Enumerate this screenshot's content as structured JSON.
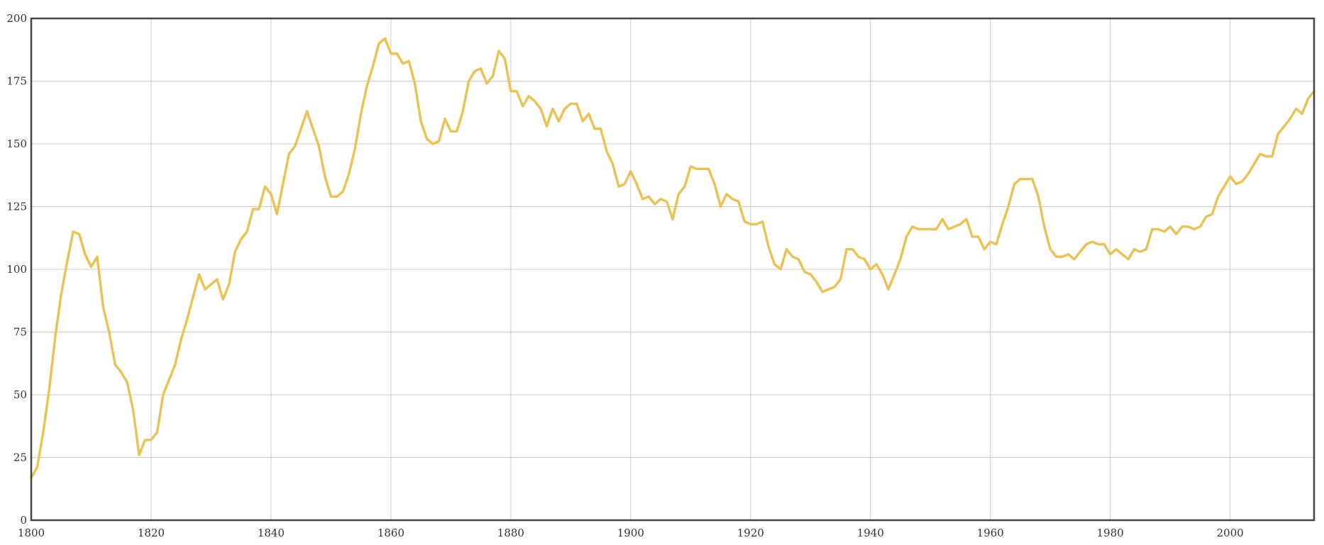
{
  "chart_data": {
    "type": "line",
    "title": "",
    "xlabel": "",
    "ylabel": "",
    "xlim": [
      1800,
      2014
    ],
    "ylim": [
      0,
      200
    ],
    "grid": true,
    "x_ticks": [
      1800,
      1820,
      1840,
      1860,
      1880,
      1900,
      1920,
      1940,
      1960,
      1980,
      2000
    ],
    "y_ticks": [
      0,
      25,
      50,
      75,
      100,
      125,
      150,
      175,
      200
    ],
    "x_tick_labels": [
      "1800",
      "1820",
      "1840",
      "1860",
      "1880",
      "1900",
      "1920",
      "1940",
      "1960",
      "1980",
      "2000"
    ],
    "y_tick_labels": [
      "0",
      "25",
      "50",
      "75",
      "100",
      "125",
      "150",
      "175",
      "200"
    ],
    "colors": {
      "line": "#EBC254",
      "grid": "#CCCCCC",
      "frame": "#444444",
      "axis_text": "#333333"
    },
    "series": [
      {
        "x": [
          1800,
          1801,
          1802,
          1803,
          1804,
          1805,
          1806,
          1807,
          1808,
          1809,
          1810,
          1811,
          1812,
          1813,
          1814,
          1815,
          1816,
          1817,
          1818,
          1819,
          1820,
          1821,
          1822,
          1823,
          1824,
          1825,
          1826,
          1827,
          1828,
          1829,
          1830,
          1831,
          1832,
          1833,
          1834,
          1835,
          1836,
          1837,
          1838,
          1839,
          1840,
          1841,
          1842,
          1843,
          1844,
          1845,
          1846,
          1847,
          1848,
          1849,
          1850,
          1851,
          1852,
          1853,
          1854,
          1855,
          1856,
          1857,
          1858,
          1859,
          1860,
          1861,
          1862,
          1863,
          1864,
          1865,
          1866,
          1867,
          1868,
          1869,
          1870,
          1871,
          1872,
          1873,
          1874,
          1875,
          1876,
          1877,
          1878,
          1879,
          1880,
          1881,
          1882,
          1883,
          1884,
          1885,
          1886,
          1887,
          1888,
          1889,
          1890,
          1891,
          1892,
          1893,
          1894,
          1895,
          1896,
          1897,
          1898,
          1899,
          1900,
          1901,
          1902,
          1903,
          1904,
          1905,
          1906,
          1907,
          1908,
          1909,
          1910,
          1911,
          1912,
          1913,
          1914,
          1915,
          1916,
          1917,
          1918,
          1919,
          1920,
          1921,
          1922,
          1923,
          1924,
          1925,
          1926,
          1927,
          1928,
          1929,
          1930,
          1931,
          1932,
          1933,
          1934,
          1935,
          1936,
          1937,
          1938,
          1939,
          1940,
          1941,
          1942,
          1943,
          1944,
          1945,
          1946,
          1947,
          1948,
          1949,
          1950,
          1951,
          1952,
          1953,
          1954,
          1955,
          1956,
          1957,
          1958,
          1959,
          1960,
          1961,
          1962,
          1963,
          1964,
          1965,
          1966,
          1967,
          1968,
          1969,
          1970,
          1971,
          1972,
          1973,
          1974,
          1975,
          1976,
          1977,
          1978,
          1979,
          1980,
          1981,
          1982,
          1983,
          1984,
          1985,
          1986,
          1987,
          1988,
          1989,
          1990,
          1991,
          1992,
          1993,
          1994,
          1995,
          1996,
          1997,
          1998,
          1999,
          2000,
          2001,
          2002,
          2003,
          2004,
          2005,
          2006,
          2007,
          2008,
          2009,
          2010,
          2011,
          2012,
          2013,
          2014
        ],
        "y": [
          17,
          21,
          35,
          52,
          73,
          90,
          103,
          115,
          114,
          106,
          101,
          105,
          85,
          75,
          62,
          59,
          55,
          44,
          26,
          32,
          32,
          35,
          50,
          56,
          62,
          72,
          80,
          89,
          98,
          92,
          94,
          96,
          88,
          94,
          107,
          112,
          115,
          124,
          124,
          133,
          130,
          122,
          134,
          146,
          149,
          156,
          163,
          156,
          149,
          137,
          129,
          129,
          131,
          138,
          148,
          162,
          173,
          181,
          190,
          192,
          186,
          186,
          182,
          183,
          174,
          159,
          152,
          150,
          151,
          160,
          155,
          155,
          163,
          175,
          179,
          180,
          174,
          177,
          187,
          184,
          171,
          171,
          165,
          169,
          167,
          164,
          157,
          164,
          159,
          164,
          166,
          166,
          159,
          162,
          156,
          156,
          147,
          142,
          133,
          134,
          139,
          134,
          128,
          129,
          126,
          128,
          127,
          120,
          130,
          133,
          141,
          140,
          140,
          140,
          134,
          125,
          130,
          128,
          127,
          119,
          118,
          118,
          119,
          109,
          102,
          100,
          108,
          105,
          104,
          99,
          98,
          95,
          91,
          92,
          93,
          96,
          108,
          108,
          105,
          104,
          100,
          102,
          98,
          92,
          98,
          104,
          113,
          117,
          116,
          116,
          116,
          116,
          120,
          116,
          117,
          118,
          120,
          113,
          113,
          108,
          111,
          110,
          118,
          125,
          134,
          136,
          136,
          136,
          129,
          117,
          108,
          105,
          105,
          106,
          104,
          107,
          110,
          111,
          110,
          110,
          106,
          108,
          106,
          104,
          108,
          107,
          108,
          116,
          116,
          115,
          117,
          114,
          117,
          117,
          116,
          117,
          121,
          122,
          129,
          133,
          137,
          134,
          135,
          138,
          142,
          146,
          145,
          145,
          154,
          157,
          160,
          164,
          162,
          168,
          171
        ]
      }
    ]
  }
}
